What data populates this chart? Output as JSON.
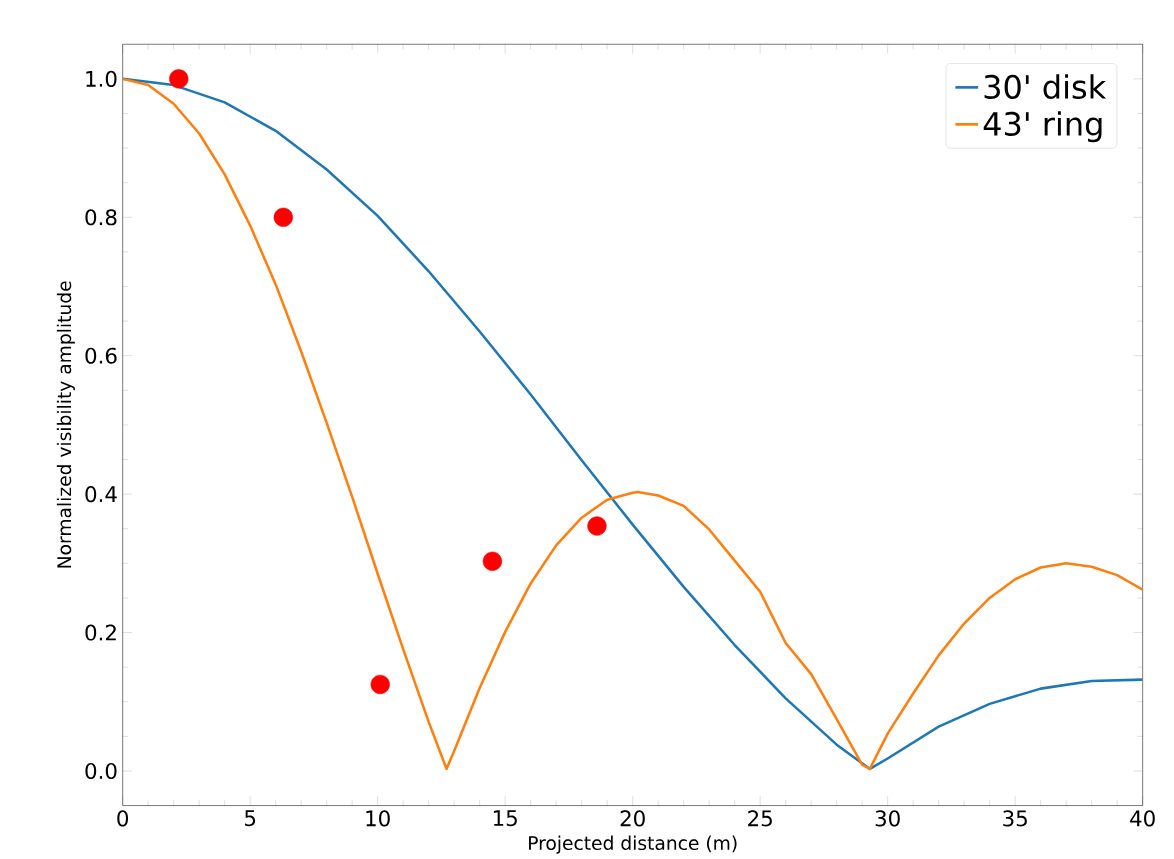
{
  "chart_data": {
    "type": "line",
    "xlabel": "Projected distance (m)",
    "ylabel": "Normalized visibility amplitude",
    "xlim": [
      0,
      40
    ],
    "ylim": [
      -0.05,
      1.05
    ],
    "xticks": [
      0,
      5,
      10,
      15,
      20,
      25,
      30,
      35,
      40
    ],
    "yticks": [
      {
        "value": 0,
        "label": "0.0"
      },
      {
        "value": 0.2,
        "label": "0.2"
      },
      {
        "value": 0.4,
        "label": "0.4"
      },
      {
        "value": 0.6,
        "label": "0.6"
      },
      {
        "value": 0.8,
        "label": "0.8"
      },
      {
        "value": 1.0,
        "label": "1.0"
      }
    ],
    "legend": "top right",
    "grid": false,
    "series": [
      {
        "name": "30' disk",
        "color": "#1f77b4",
        "marker": "none",
        "x": [
          0,
          2,
          4,
          6,
          8,
          10,
          12,
          14,
          16,
          18,
          20,
          22,
          24,
          26,
          28,
          29.3,
          30,
          32,
          34,
          36,
          38,
          40
        ],
        "values": [
          1,
          0.991,
          0.966,
          0.925,
          0.869,
          0.802,
          0.722,
          0.635,
          0.544,
          0.449,
          0.356,
          0.266,
          0.182,
          0.105,
          0.038,
          0.003,
          0.018,
          0.064,
          0.097,
          0.119,
          0.13,
          0.132
        ]
      },
      {
        "name": "43' ring",
        "color": "#ff7f0e",
        "marker": "none",
        "x": [
          0,
          1,
          2,
          3,
          4,
          5,
          6,
          7,
          8,
          9,
          10,
          11,
          12,
          12.7,
          13,
          14,
          15,
          16,
          17,
          18,
          19,
          20,
          20.2,
          21,
          22,
          23,
          24,
          25,
          26,
          27,
          28,
          29,
          29.3,
          30,
          31,
          32,
          33,
          34,
          35,
          36,
          37,
          38,
          39,
          40
        ],
        "values": [
          1,
          0.991,
          0.964,
          0.921,
          0.862,
          0.788,
          0.703,
          0.606,
          0.503,
          0.396,
          0.285,
          0.176,
          0.071,
          0.003,
          0.029,
          0.12,
          0.201,
          0.271,
          0.326,
          0.366,
          0.392,
          0.402,
          0.403,
          0.398,
          0.383,
          0.349,
          0.304,
          0.259,
          0.185,
          0.14,
          0.075,
          0.009,
          0.003,
          0.054,
          0.112,
          0.167,
          0.213,
          0.25,
          0.277,
          0.294,
          0.3,
          0.295,
          0.283,
          0.262
        ]
      },
      {
        "type": "scatter",
        "color": "#ff0000",
        "marker": "circle",
        "x": [
          2.2,
          6.3,
          10.1,
          14.5,
          18.6
        ],
        "values": [
          1.0,
          0.8,
          0.125,
          0.303,
          0.354
        ]
      }
    ]
  }
}
